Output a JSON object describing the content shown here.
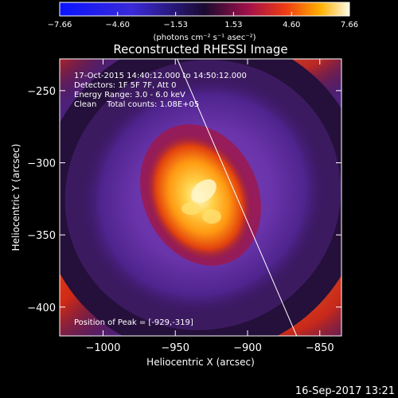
{
  "chart_data": {
    "type": "heatmap",
    "title": "Reconstructed RHESSI Image",
    "xlabel": "Heliocentric X (arcsec)",
    "ylabel": "Heliocentric Y (arcsec)",
    "xlim": [
      -1030,
      -835
    ],
    "ylim": [
      -420,
      -228
    ],
    "x_ticks": [
      {
        "value": -1000,
        "label": "−1000"
      },
      {
        "value": -950,
        "label": "−950"
      },
      {
        "value": -900,
        "label": "−900"
      },
      {
        "value": -850,
        "label": "−850"
      }
    ],
    "y_ticks": [
      {
        "value": -250,
        "label": "−250"
      },
      {
        "value": -300,
        "label": "−300"
      },
      {
        "value": -350,
        "label": "−350"
      },
      {
        "value": -400,
        "label": "−400"
      }
    ],
    "colorbar": {
      "min": -7.66,
      "max": 7.66,
      "ticks": [
        {
          "value": -7.66,
          "label": "−7.66"
        },
        {
          "value": -4.6,
          "label": "−4.60"
        },
        {
          "value": -1.53,
          "label": "−1.53"
        },
        {
          "value": 1.53,
          "label": "1.53"
        },
        {
          "value": 4.6,
          "label": "4.60"
        },
        {
          "value": 7.66,
          "label": "7.66"
        }
      ],
      "unit_label": "(photons cm⁻² s⁻¹ asec⁻²)"
    },
    "annotations": [
      "17-Oct-2015 14:40:12.000 to 14:50:12.000",
      "Detectors: 1F 5F 7F, Att 0",
      "Energy Range: 3.0 - 6.0 keV",
      "Clean    Total counts: 1.08E+05"
    ],
    "peak_label": "Position of Peak = [-929,-319]",
    "peak": {
      "x": -929,
      "y": -319
    },
    "limb_line": [
      [
        -950,
        -225
      ],
      [
        -866,
        -420
      ]
    ]
  },
  "footer": {
    "timestamp": "16-Sep-2017 13:21"
  }
}
